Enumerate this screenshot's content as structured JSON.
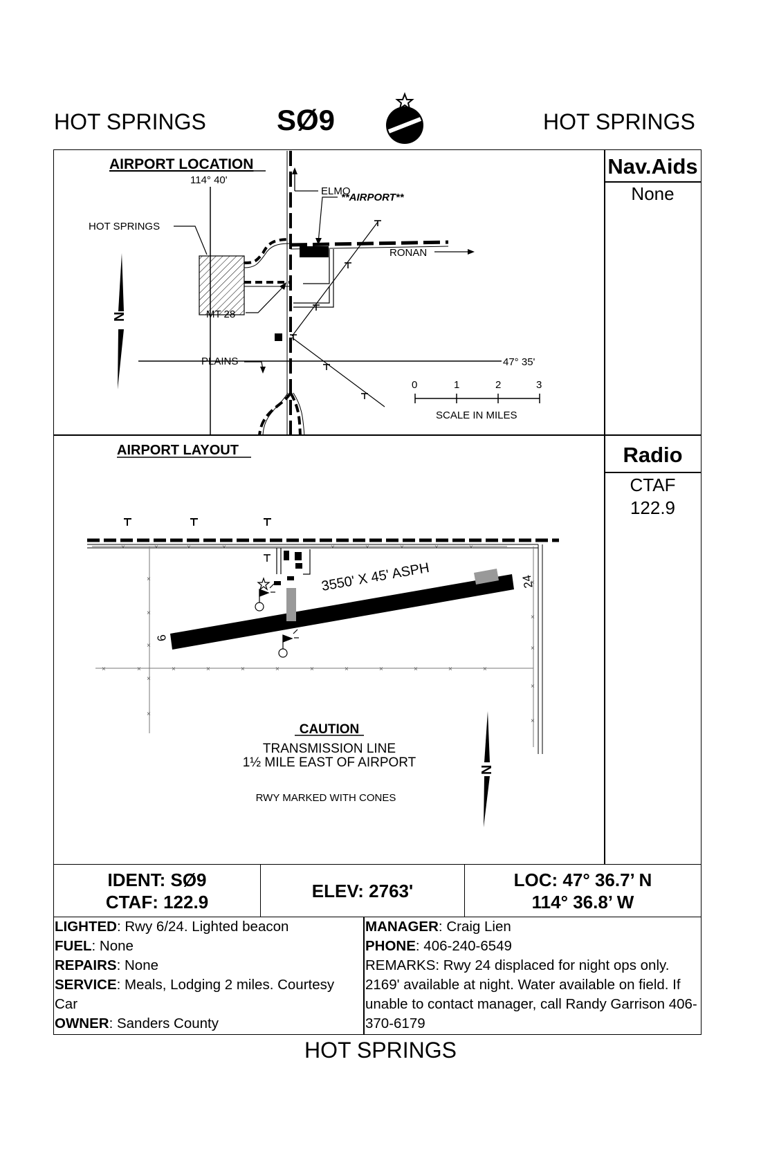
{
  "header": {
    "left_name": "HOT SPRINGS",
    "ident": "SØ9",
    "right_name": "HOT SPRINGS"
  },
  "location_map": {
    "title": "AIRPORT LOCATION",
    "longitude_label": "114° 40'",
    "latitude_label": "47° 35'",
    "towns": {
      "elmo": "ELMO",
      "airport": "**AIRPORT**",
      "hot_springs": "HOT SPRINGS",
      "ronan": "RONAN",
      "highway": "MT 28",
      "plains": "PLAINS"
    },
    "north_label": "N",
    "scale": {
      "ticks": [
        "0",
        "1",
        "2",
        "3"
      ],
      "label": "SCALE IN MILES"
    }
  },
  "navaids": {
    "heading": "Nav.Aids",
    "value": "None"
  },
  "layout_map": {
    "title": "AIRPORT LAYOUT",
    "runway_label": "3550' X 45' ASPH",
    "rwy_end_left": "6",
    "rwy_end_right": "24",
    "caution_title": "CAUTION",
    "caution_line1": "TRANSMISSION LINE",
    "caution_line2": "1½ MILE EAST OF AIRPORT",
    "note": "RWY MARKED WITH CONES",
    "north_label": "N"
  },
  "radio": {
    "heading": "Radio",
    "line1": "CTAF",
    "line2": "122.9"
  },
  "summary": {
    "ident": "IDENT: SØ9",
    "ctaf": "CTAF: 122.9",
    "elev": "ELEV: 2763'",
    "loc_lat": "LOC: 47° 36.7’ N",
    "loc_lon": "114° 36.8’ W"
  },
  "details_left": {
    "lighted_label": "LIGHTED",
    "lighted": ": Rwy 6/24. Lighted beacon",
    "fuel_label": "FUEL",
    "fuel": ": None",
    "repairs_label": "REPAIRS",
    "repairs": ": None",
    "service_label": "SERVICE",
    "service": ": Meals, Lodging 2 miles. Courtesy Car",
    "owner_label": "OWNER",
    "owner": ": Sanders County"
  },
  "details_right": {
    "manager_label": "MANAGER",
    "manager": ": Craig Lien",
    "phone_label": "PHONE",
    "phone": ": 406-240-6549",
    "remarks": "REMARKS: Rwy 24 displaced for night ops only. 2169' available at night. Water available on field. If unable to contact manager, call Randy Garrison 406-370-6179"
  },
  "footer": {
    "name": "HOT SPRINGS"
  }
}
